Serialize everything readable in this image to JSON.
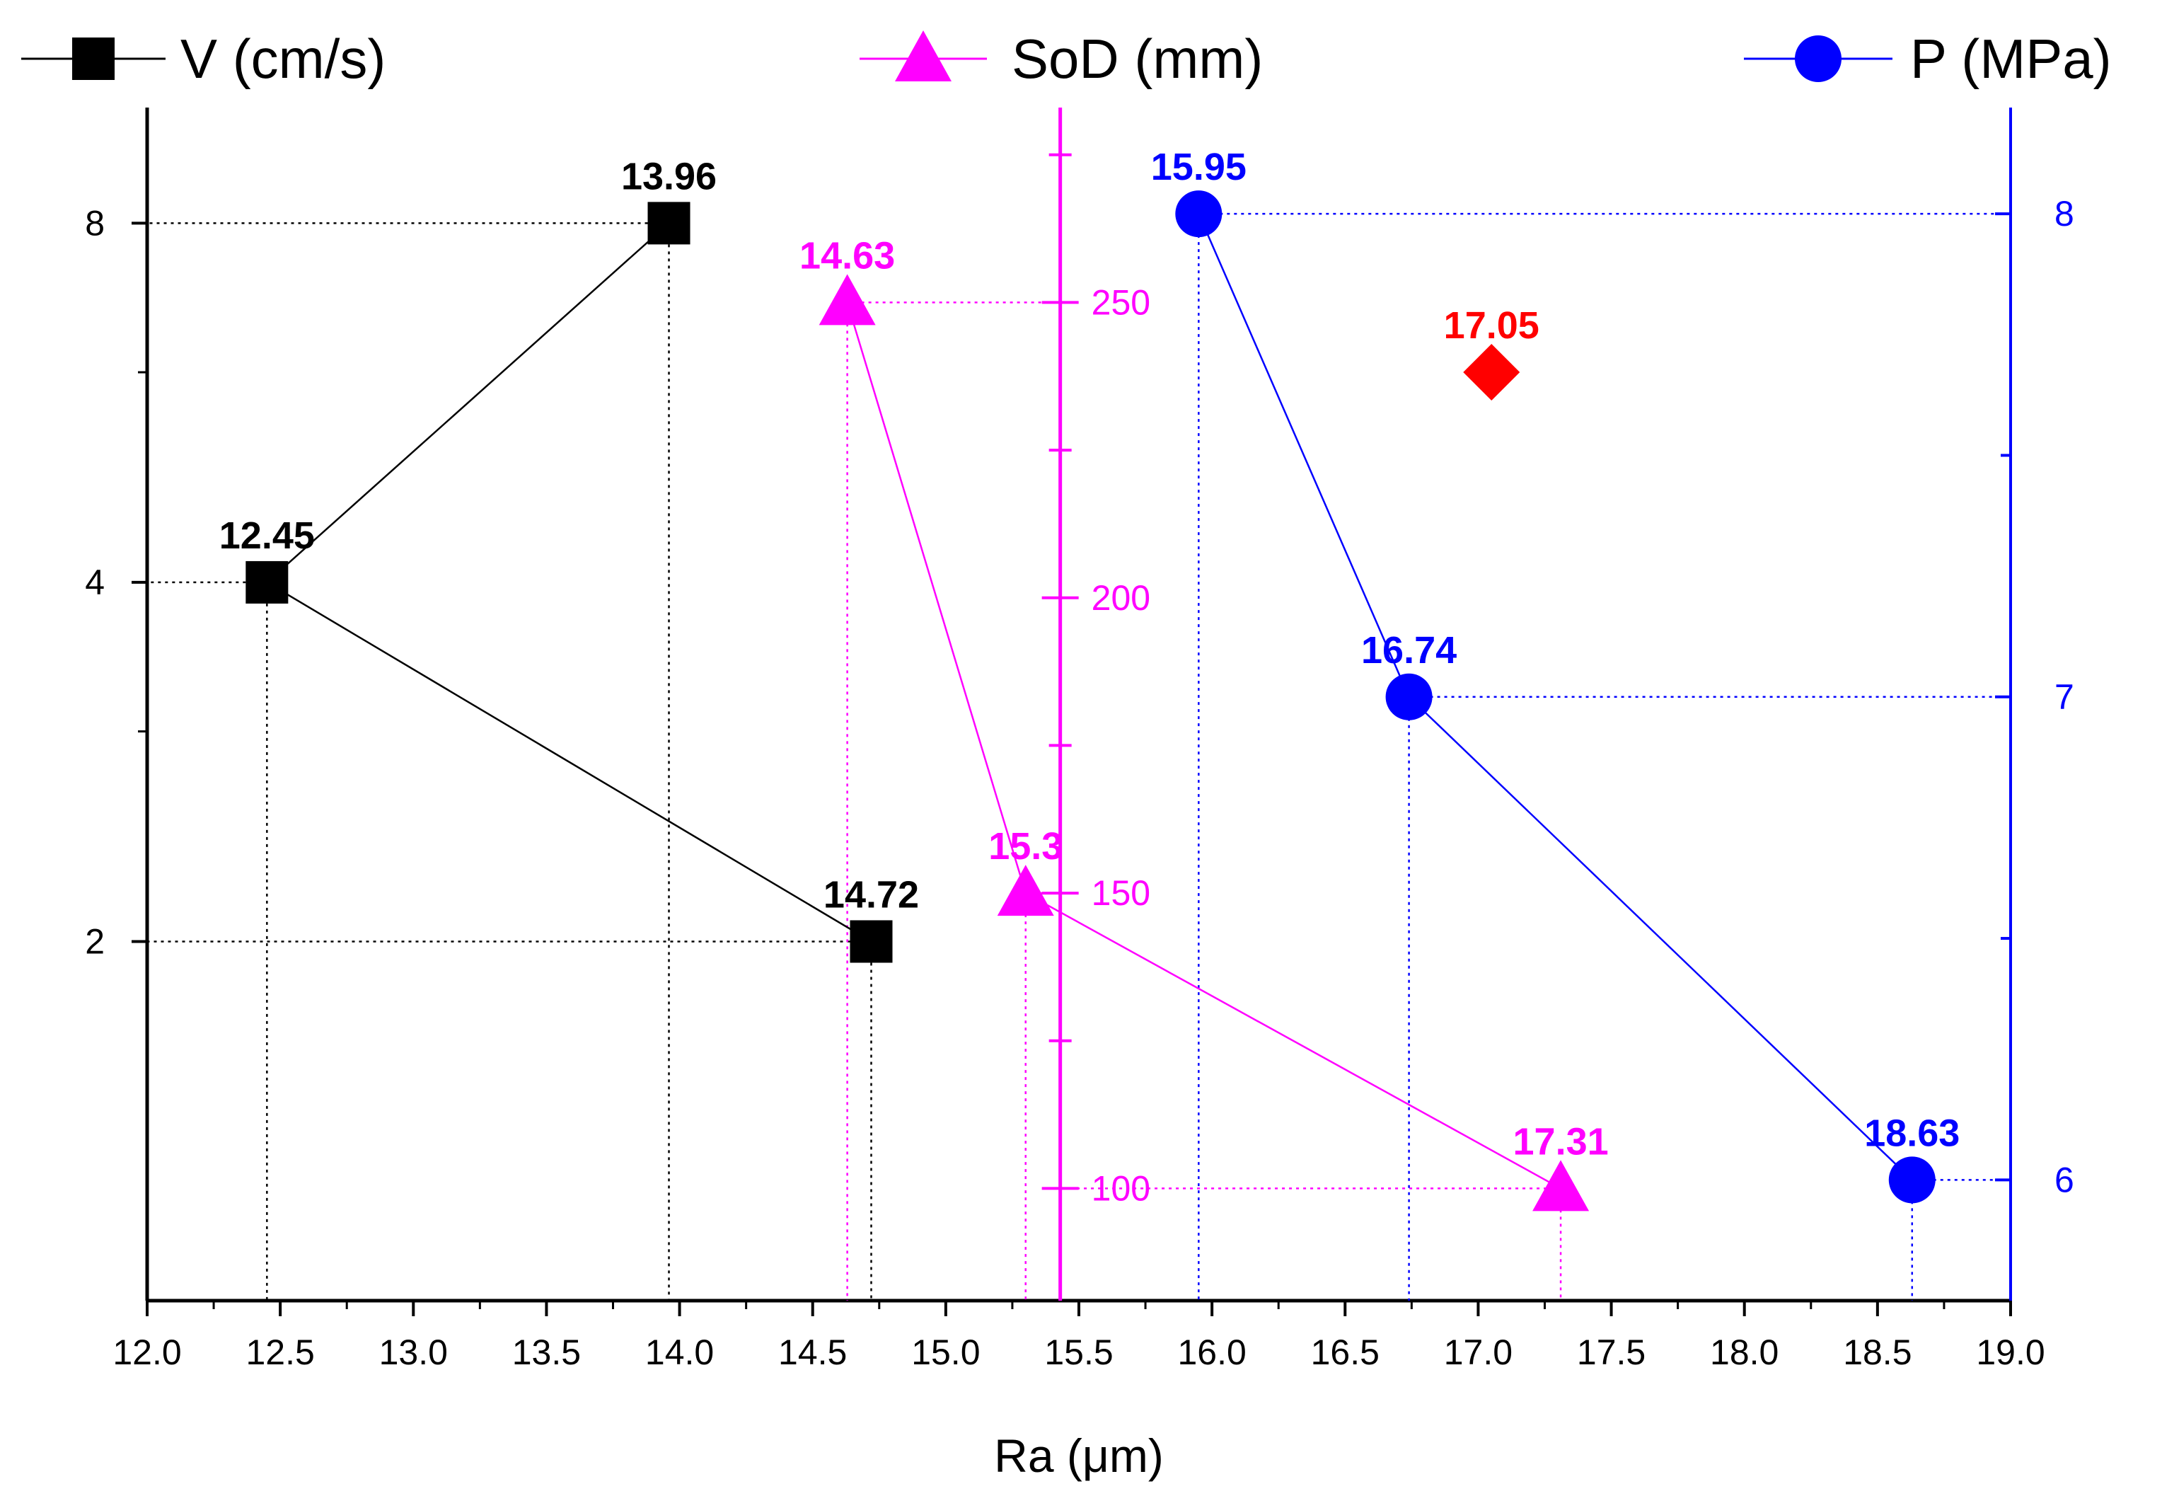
{
  "chart_data": {
    "type": "scatter",
    "xlabel": "Ra (μm)",
    "xlim": [
      12.0,
      19.0
    ],
    "xticks": [
      12.0,
      12.5,
      13.0,
      13.5,
      14.0,
      14.5,
      15.0,
      15.5,
      16.0,
      16.5,
      17.0,
      17.5,
      18.0,
      18.5,
      19.0
    ],
    "xtick_labels": [
      "12.0",
      "12.5",
      "13.0",
      "13.5",
      "14.0",
      "14.5",
      "15.0",
      "15.5",
      "16.0",
      "16.5",
      "17.0",
      "17.5",
      "18.0",
      "18.5",
      "19.0"
    ],
    "grid": false,
    "axes": {
      "left": {
        "scale": "log2",
        "ylim": [
          1,
          10
        ],
        "ticks": [
          2,
          4,
          8
        ],
        "tick_labels": [
          "2",
          "4",
          "8"
        ],
        "color": "#000000"
      },
      "middle": {
        "position_x": 15.43,
        "ylim": [
          81,
          283
        ],
        "ticks": [
          100,
          150,
          200,
          250
        ],
        "tick_labels": [
          "100",
          "150",
          "200",
          "250"
        ],
        "color": "#ff00ff"
      },
      "right": {
        "ylim": [
          5.75,
          8.22
        ],
        "ticks": [
          6,
          7,
          8
        ],
        "tick_labels": [
          "6",
          "7",
          "8"
        ],
        "color": "#0000ff"
      }
    },
    "series": [
      {
        "name": "V (cm/s)",
        "axis": "left",
        "marker": "square",
        "color": "#000000",
        "x": [
          13.96,
          12.45,
          14.72
        ],
        "y": [
          8,
          4,
          2
        ],
        "labels": [
          "13.96",
          "12.45",
          "14.72"
        ]
      },
      {
        "name": "SoD (mm)",
        "axis": "middle",
        "marker": "triangle",
        "color": "#ff00ff",
        "x": [
          14.63,
          15.3,
          17.31
        ],
        "y": [
          250,
          150,
          100
        ],
        "labels": [
          "14.63",
          "15.3",
          "17.31"
        ]
      },
      {
        "name": "P (MPa)",
        "axis": "right",
        "marker": "circle",
        "color": "#0000ff",
        "x": [
          15.95,
          16.74,
          18.63
        ],
        "y": [
          8,
          7,
          6
        ],
        "labels": [
          "15.95",
          "16.74",
          "18.63"
        ]
      }
    ],
    "optimum": {
      "x": 17.05,
      "y_left": 6,
      "label": "17.05",
      "marker": "diamond",
      "color": "#ff0000"
    }
  }
}
